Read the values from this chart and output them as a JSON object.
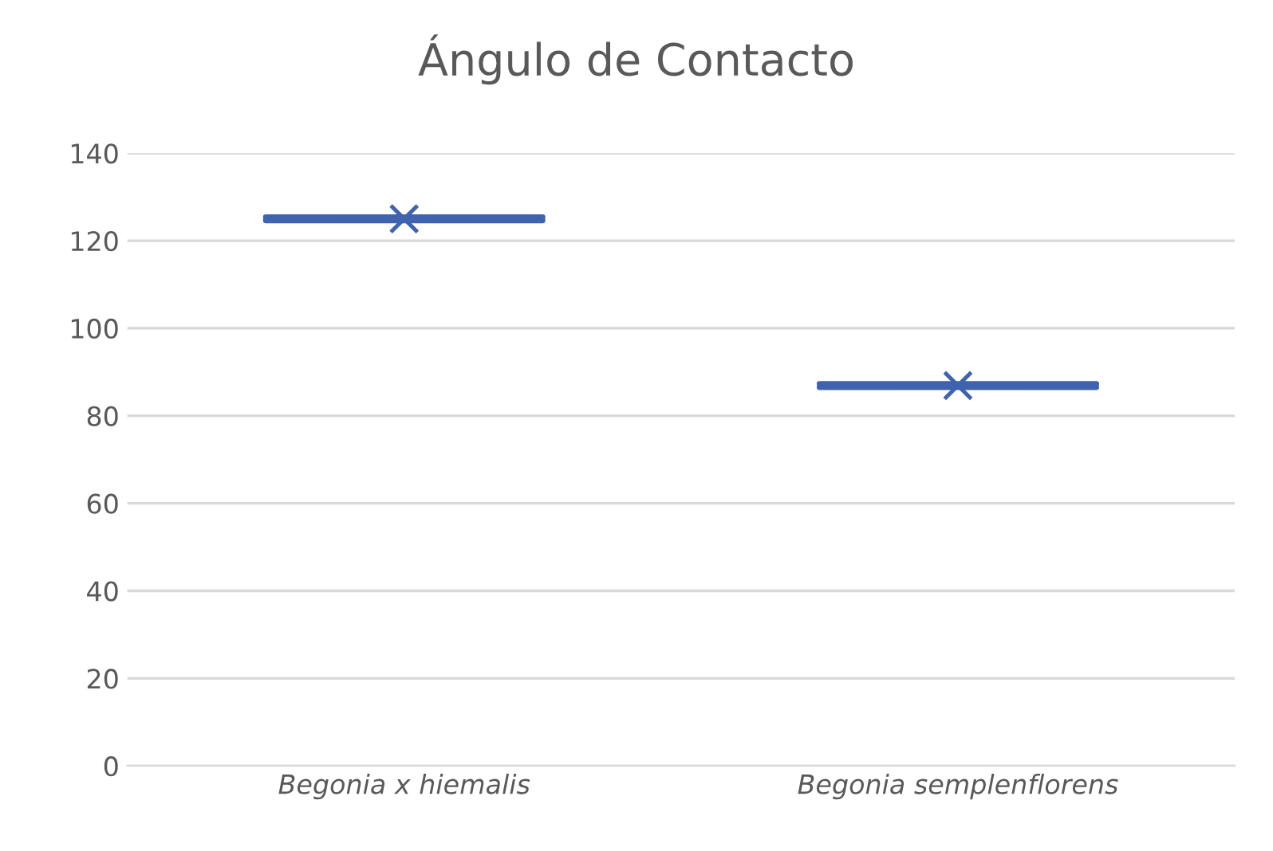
{
  "chart_data": {
    "type": "box",
    "title": "Ángulo de Contacto",
    "categories": [
      "Begonia x hiemalis",
      "Begonia semplenflorens"
    ],
    "boxes": [
      {
        "low": 124.6,
        "q1": 124.8,
        "median": 125,
        "q3": 125.2,
        "high": 125.4,
        "mean": 125
      },
      {
        "low": 86.5,
        "q1": 86.7,
        "median": 86.9,
        "q3": 87.1,
        "high": 87.3,
        "mean": 86.9
      }
    ],
    "color": "#3f63ad",
    "ylim": [
      0,
      140
    ],
    "yticks": [
      0,
      20,
      40,
      60,
      80,
      100,
      120,
      140
    ],
    "grid": "y",
    "legend": false
  }
}
